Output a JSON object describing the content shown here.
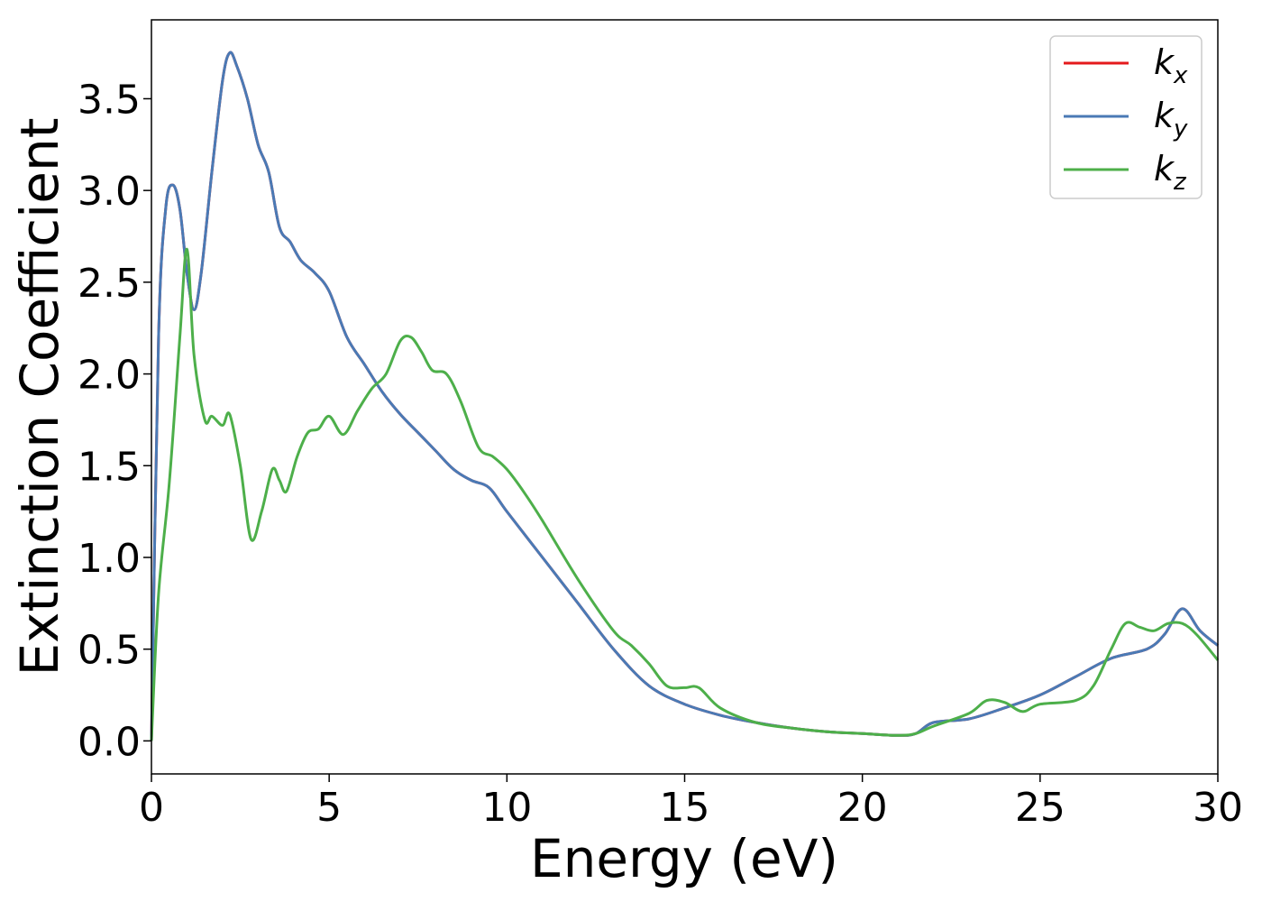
{
  "chart_data": {
    "type": "line",
    "xlabel": "Energy (eV)",
    "ylabel": "Extinction Coefficient",
    "xlim": [
      0,
      30
    ],
    "ylim": [
      -0.18,
      3.93
    ],
    "xticks": [
      0,
      5,
      10,
      15,
      20,
      25,
      30
    ],
    "xtick_labels": [
      "0",
      "5",
      "10",
      "15",
      "20",
      "25",
      "30"
    ],
    "yticks": [
      0.0,
      0.5,
      1.0,
      1.5,
      2.0,
      2.5,
      3.0,
      3.5
    ],
    "ytick_labels": [
      "0.0",
      "0.5",
      "1.0",
      "1.5",
      "2.0",
      "2.5",
      "3.0",
      "3.5"
    ],
    "grid": false,
    "legend_position": "top-right",
    "series": [
      {
        "name": "k_x",
        "label_base": "k",
        "label_sub": "x",
        "color": "#e41a1c",
        "x": [
          0,
          0.2,
          0.4,
          0.6,
          0.8,
          1.0,
          1.2,
          1.4,
          1.7,
          2.0,
          2.2,
          2.4,
          2.7,
          3.0,
          3.3,
          3.6,
          3.9,
          4.2,
          4.6,
          5.0,
          5.5,
          6.0,
          6.5,
          7.0,
          7.5,
          8.0,
          8.5,
          9.0,
          9.5,
          10.0,
          11.0,
          12.0,
          13.0,
          14.0,
          15.0,
          16.0,
          17.0,
          18.0,
          19.0,
          20.0,
          21.0,
          21.5,
          22.0,
          23.0,
          24.0,
          25.0,
          26.0,
          27.0,
          28.0,
          28.5,
          29.0,
          29.5,
          30.0
        ],
        "y": [
          0.0,
          2.2,
          2.9,
          3.03,
          2.9,
          2.55,
          2.35,
          2.55,
          3.1,
          3.6,
          3.75,
          3.68,
          3.5,
          3.25,
          3.1,
          2.8,
          2.72,
          2.62,
          2.55,
          2.45,
          2.2,
          2.05,
          1.9,
          1.78,
          1.68,
          1.58,
          1.48,
          1.42,
          1.38,
          1.25,
          1.0,
          0.75,
          0.5,
          0.3,
          0.2,
          0.14,
          0.1,
          0.07,
          0.05,
          0.04,
          0.03,
          0.04,
          0.1,
          0.12,
          0.18,
          0.25,
          0.35,
          0.45,
          0.5,
          0.58,
          0.72,
          0.6,
          0.52
        ]
      },
      {
        "name": "k_y",
        "label_base": "k",
        "label_sub": "y",
        "color": "#4a7ab5",
        "x": [
          0,
          0.2,
          0.4,
          0.6,
          0.8,
          1.0,
          1.2,
          1.4,
          1.7,
          2.0,
          2.2,
          2.4,
          2.7,
          3.0,
          3.3,
          3.6,
          3.9,
          4.2,
          4.6,
          5.0,
          5.5,
          6.0,
          6.5,
          7.0,
          7.5,
          8.0,
          8.5,
          9.0,
          9.5,
          10.0,
          11.0,
          12.0,
          13.0,
          14.0,
          15.0,
          16.0,
          17.0,
          18.0,
          19.0,
          20.0,
          21.0,
          21.5,
          22.0,
          23.0,
          24.0,
          25.0,
          26.0,
          27.0,
          28.0,
          28.5,
          29.0,
          29.5,
          30.0
        ],
        "y": [
          0.0,
          2.2,
          2.9,
          3.03,
          2.9,
          2.55,
          2.35,
          2.55,
          3.1,
          3.6,
          3.75,
          3.68,
          3.5,
          3.25,
          3.1,
          2.8,
          2.72,
          2.62,
          2.55,
          2.45,
          2.2,
          2.05,
          1.9,
          1.78,
          1.68,
          1.58,
          1.48,
          1.42,
          1.38,
          1.25,
          1.0,
          0.75,
          0.5,
          0.3,
          0.2,
          0.14,
          0.1,
          0.07,
          0.05,
          0.04,
          0.03,
          0.04,
          0.1,
          0.12,
          0.18,
          0.25,
          0.35,
          0.45,
          0.5,
          0.58,
          0.72,
          0.6,
          0.52
        ]
      },
      {
        "name": "k_z",
        "label_base": "k",
        "label_sub": "z",
        "color": "#4daf4a",
        "x": [
          0,
          0.2,
          0.5,
          0.8,
          1.0,
          1.2,
          1.5,
          1.7,
          2.0,
          2.2,
          2.5,
          2.8,
          3.1,
          3.4,
          3.6,
          3.8,
          4.1,
          4.4,
          4.7,
          5.0,
          5.4,
          5.8,
          6.2,
          6.6,
          7.0,
          7.3,
          7.6,
          7.9,
          8.3,
          8.7,
          9.2,
          9.6,
          10.0,
          10.5,
          11.0,
          12.0,
          13.0,
          13.5,
          14.0,
          14.5,
          15.0,
          15.4,
          16.0,
          17.0,
          18.0,
          19.0,
          20.0,
          21.0,
          21.5,
          22.0,
          23.0,
          23.5,
          24.0,
          24.5,
          25.0,
          26.0,
          26.5,
          27.0,
          27.4,
          27.8,
          28.2,
          28.6,
          29.0,
          29.4,
          30.0
        ],
        "y": [
          0.0,
          0.8,
          1.4,
          2.2,
          2.68,
          2.1,
          1.75,
          1.77,
          1.72,
          1.78,
          1.5,
          1.1,
          1.25,
          1.48,
          1.42,
          1.36,
          1.55,
          1.68,
          1.7,
          1.77,
          1.67,
          1.8,
          1.92,
          2.0,
          2.18,
          2.2,
          2.12,
          2.02,
          2.0,
          1.85,
          1.6,
          1.55,
          1.48,
          1.35,
          1.2,
          0.88,
          0.6,
          0.52,
          0.42,
          0.3,
          0.29,
          0.29,
          0.18,
          0.1,
          0.07,
          0.05,
          0.04,
          0.03,
          0.04,
          0.08,
          0.15,
          0.22,
          0.21,
          0.16,
          0.2,
          0.22,
          0.3,
          0.5,
          0.64,
          0.62,
          0.6,
          0.64,
          0.64,
          0.58,
          0.44
        ]
      }
    ]
  }
}
